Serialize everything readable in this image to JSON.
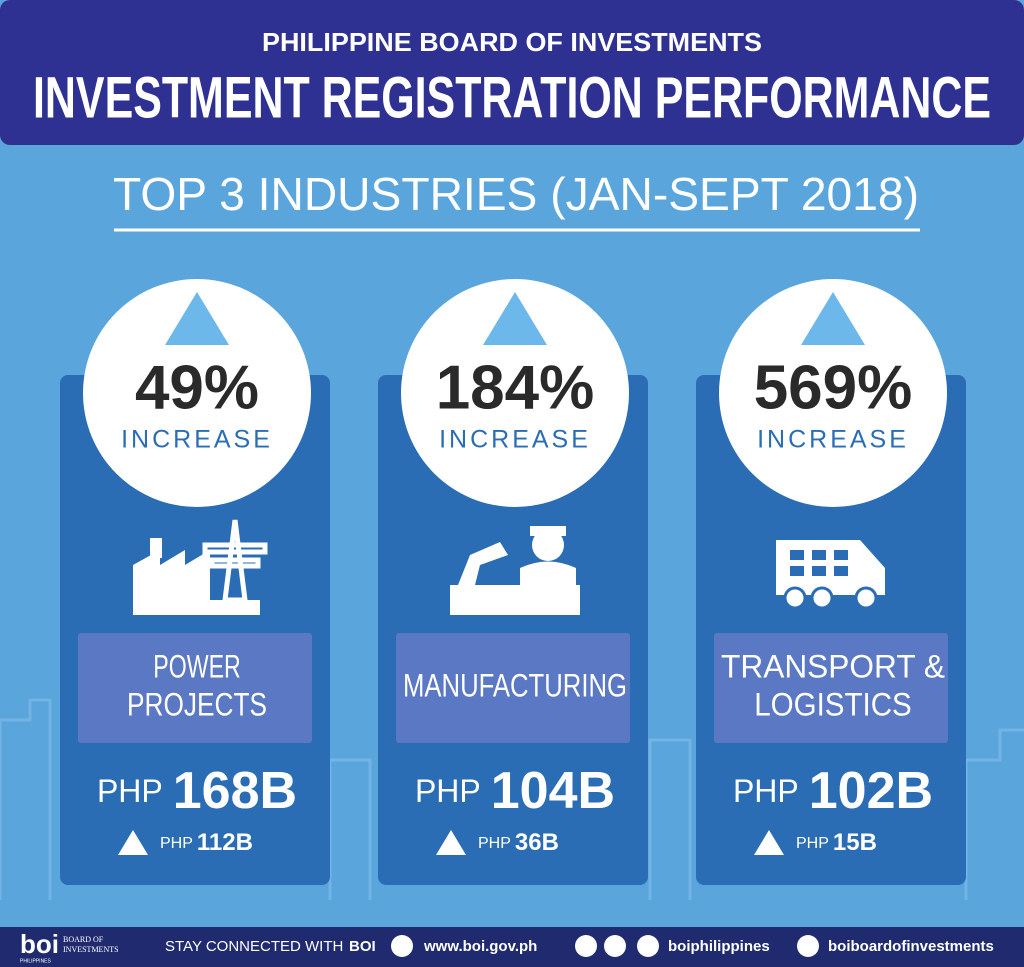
{
  "header": {
    "org": "PHILIPPINE BOARD OF INVESTMENTS",
    "title": "INVESTMENT REGISTRATION PERFORMANCE"
  },
  "subtitle": "TOP 3 INDUSTRIES (JAN-SEPT 2018)",
  "cards": [
    {
      "percent": "49%",
      "label": "INCREASE",
      "industry": [
        "POWER",
        "PROJECTS"
      ],
      "currency": "PHP",
      "amount": "168B",
      "change_currency": "PHP",
      "change": "112B"
    },
    {
      "percent": "184%",
      "label": "INCREASE",
      "industry": [
        "MANUFACTURING"
      ],
      "currency": "PHP",
      "amount": "104B",
      "change_currency": "PHP",
      "change": "36B"
    },
    {
      "percent": "569%",
      "label": "INCREASE",
      "industry": [
        "TRANSPORT &",
        "LOGISTICS"
      ],
      "currency": "PHP",
      "amount": "102B",
      "change_currency": "PHP",
      "change": "15B"
    }
  ],
  "footer": {
    "logo": "boi",
    "logo_name": [
      "BOARD OF",
      "INVESTMENTS"
    ],
    "logo_country": "PHILIPPINES",
    "stay": "STAY CONNECTED WITH",
    "stay_brand": "BOI",
    "website": "www.boi.gov.ph",
    "social": "boiphilippines",
    "youtube": "boiboardofinvestments"
  }
}
